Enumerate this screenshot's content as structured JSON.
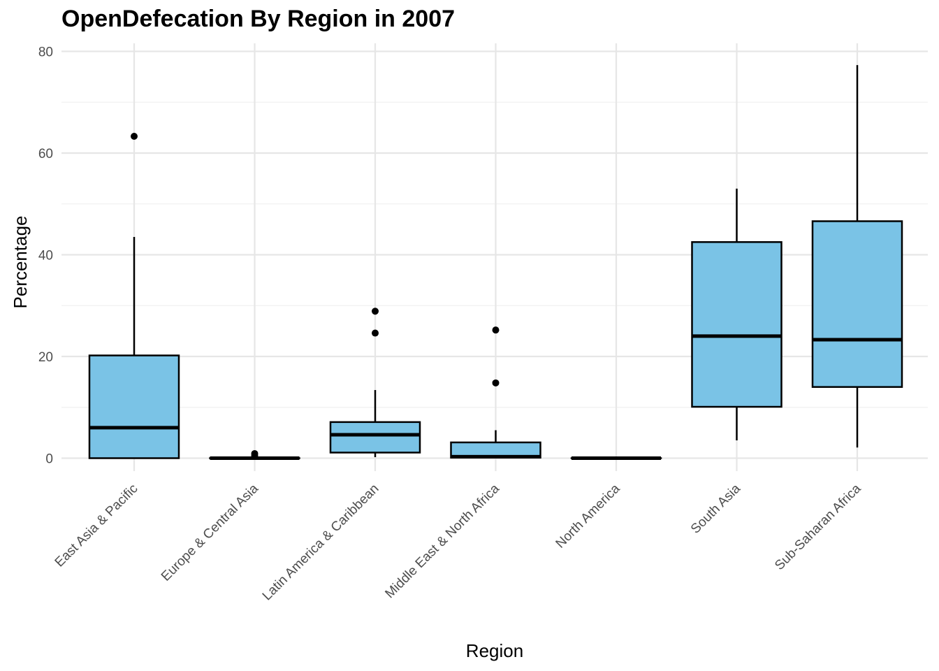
{
  "chart_data": {
    "type": "box",
    "title": "OpenDefecation By Region in 2007",
    "xlabel": "Region",
    "ylabel": "Percentage",
    "ylim": [
      -3,
      80
    ],
    "yticks": [
      0,
      20,
      40,
      60,
      80
    ],
    "grid": true,
    "legend": "none",
    "colors": {
      "box_fill": "#7ac3e6",
      "box_stroke": "#000000",
      "grid_major": "#e6e6e6",
      "grid_minor": "#f0f0f0"
    },
    "categories": [
      "East Asia & Pacific",
      "Europe & Central Asia",
      "Latin America & Caribbean",
      "Middle East & North Africa",
      "North America",
      "South Asia",
      "Sub-Saharan Africa"
    ],
    "boxes": [
      {
        "category": "East Asia & Pacific",
        "whisker_low": 0,
        "q1": 0,
        "median": 6,
        "q3": 20.2,
        "whisker_high": 43.5,
        "outliers": [
          63.3
        ]
      },
      {
        "category": "Europe & Central Asia",
        "whisker_low": 0,
        "q1": 0,
        "median": 0,
        "q3": 0,
        "whisker_high": 0,
        "outliers": [
          0.5,
          0.9
        ]
      },
      {
        "category": "Latin America & Caribbean",
        "whisker_low": 0.2,
        "q1": 1.1,
        "median": 4.6,
        "q3": 7.1,
        "whisker_high": 13.4,
        "outliers": [
          24.6,
          28.9
        ]
      },
      {
        "category": "Middle East & North Africa",
        "whisker_low": 0,
        "q1": 0.1,
        "median": 0.3,
        "q3": 3.1,
        "whisker_high": 5.5,
        "outliers": [
          14.8,
          25.2
        ]
      },
      {
        "category": "North America",
        "whisker_low": 0,
        "q1": 0,
        "median": 0,
        "q3": 0,
        "whisker_high": 0,
        "outliers": []
      },
      {
        "category": "South Asia",
        "whisker_low": 3.5,
        "q1": 10.1,
        "median": 24,
        "q3": 42.5,
        "whisker_high": 53,
        "outliers": []
      },
      {
        "category": "Sub-Saharan Africa",
        "whisker_low": 2.1,
        "q1": 14,
        "median": 23.3,
        "q3": 46.6,
        "whisker_high": 77.3,
        "outliers": []
      }
    ]
  }
}
